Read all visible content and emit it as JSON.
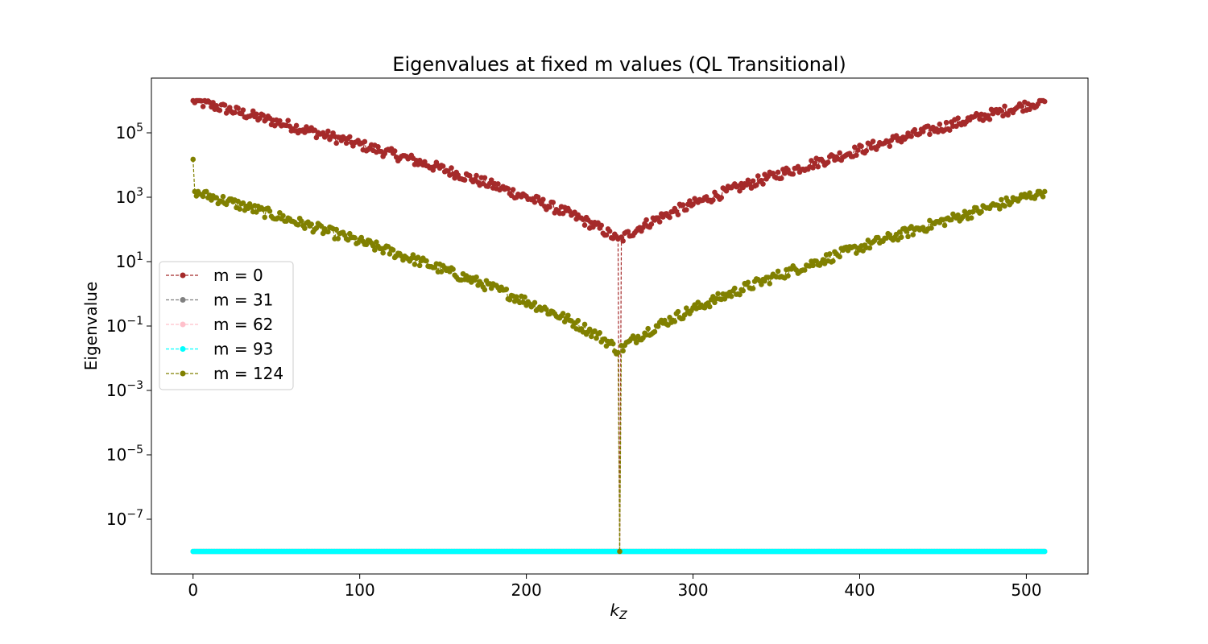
{
  "chart_data": {
    "type": "line",
    "title": "Eigenvalues at fixed m values (QL Transitional)",
    "xlabel_base": "k",
    "xlabel_sub": "Z",
    "ylabel": "Eigenvalue",
    "xscale": "linear",
    "yscale": "log",
    "xlim": [
      -25,
      537
    ],
    "ylim_log10": [
      -8.7,
      6.7
    ],
    "x_ticks": [
      0,
      100,
      200,
      300,
      400,
      500
    ],
    "y_tick_exponents": [
      -7,
      -5,
      -3,
      -1,
      1,
      3,
      5
    ],
    "y_tick_base": "10",
    "grid": false,
    "legend_position": "center-left",
    "x": {
      "start": 0,
      "end": 511,
      "step": 1
    },
    "series": [
      {
        "name": "m = 0",
        "color": "#a52a2a",
        "marker": "circle",
        "linestyle": "dashed",
        "profile": "u-shape",
        "edge_value": 1000000,
        "center_value": 40,
        "dip_index": 256,
        "dip_value": 1e-08,
        "noise_dex": 0.16
      },
      {
        "name": "m = 31",
        "color": "#808080",
        "marker": "circle",
        "linestyle": "dashed",
        "profile": "constant",
        "value": 1e-08
      },
      {
        "name": "m = 62",
        "color": "#ffc0cb",
        "marker": "circle",
        "linestyle": "dashed",
        "profile": "constant",
        "value": 1e-08
      },
      {
        "name": "m = 93",
        "color": "#00ffff",
        "marker": "circle",
        "linestyle": "dashed",
        "profile": "constant",
        "value": 1e-08
      },
      {
        "name": "m = 124",
        "color": "#808000",
        "marker": "circle",
        "linestyle": "dashed",
        "profile": "u-shape",
        "edge_value": 1500,
        "center_value": 0.015,
        "first_value": 15000,
        "dip_index": 256,
        "dip_value": 1e-08,
        "noise_dex": 0.16
      }
    ]
  }
}
